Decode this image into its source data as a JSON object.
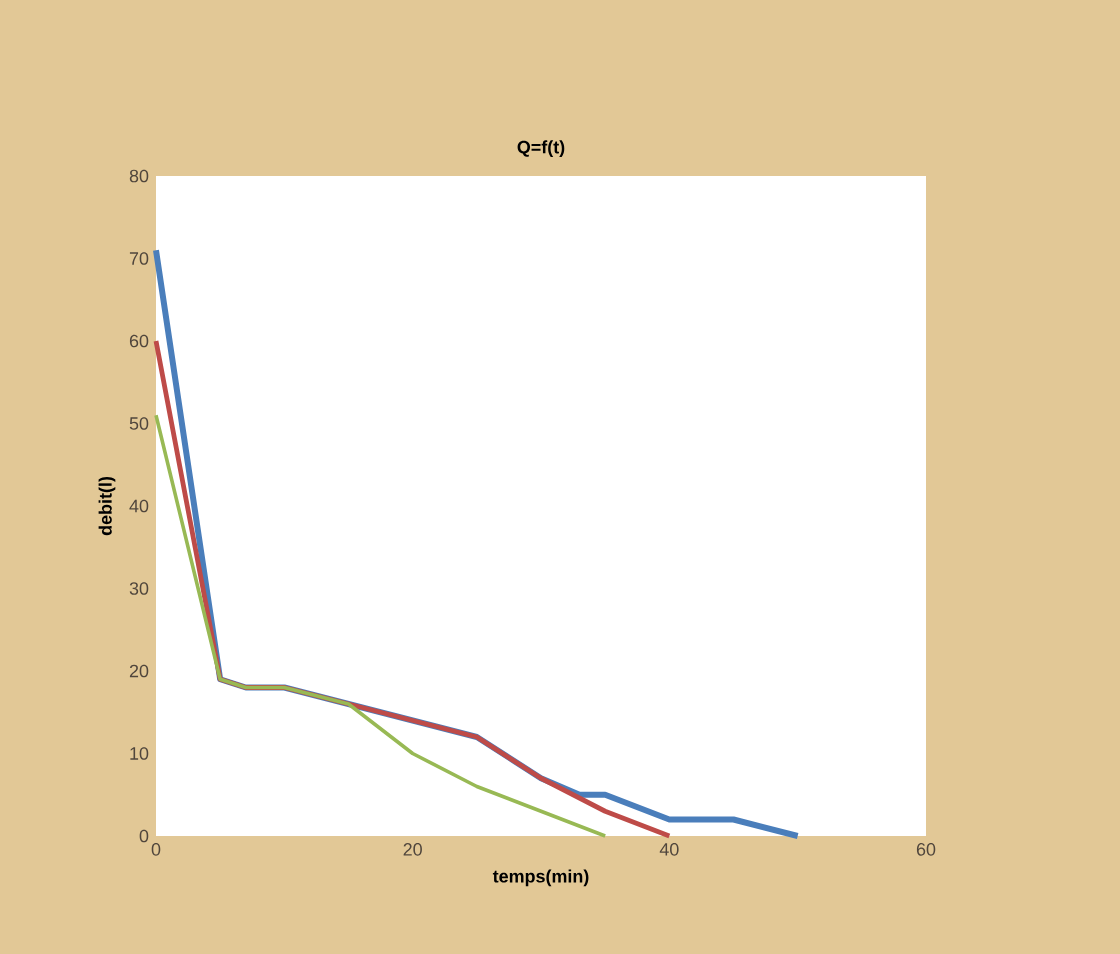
{
  "chart_data": {
    "type": "line",
    "title": "Q=f(t)",
    "xlabel": "temps(min)",
    "ylabel": "debit(l)",
    "xlim": [
      0,
      60
    ],
    "xticks": [
      0,
      20,
      40,
      60
    ],
    "ylim": [
      0,
      80
    ],
    "yticks": [
      0,
      10,
      20,
      30,
      40,
      50,
      60,
      70,
      80
    ],
    "grid": false,
    "line_style": "solid",
    "series": [
      {
        "color": "#4a7ebb",
        "x": [
          0,
          5,
          7,
          10,
          15,
          20,
          25,
          30,
          33,
          35,
          40,
          45,
          50
        ],
        "values": [
          71,
          19,
          18,
          18,
          16,
          14,
          12,
          7,
          5,
          5,
          2,
          2,
          0
        ]
      },
      {
        "color": "#be4b48",
        "x": [
          0,
          5,
          7,
          10,
          15,
          20,
          25,
          30,
          35,
          40
        ],
        "values": [
          60,
          19,
          18,
          18,
          16,
          14,
          12,
          7,
          3,
          0
        ]
      },
      {
        "color": "#98b954",
        "x": [
          0,
          5,
          7,
          10,
          15,
          20,
          25,
          30,
          35
        ],
        "values": [
          51,
          19,
          18,
          18,
          16,
          10,
          6,
          3,
          0
        ]
      }
    ]
  }
}
